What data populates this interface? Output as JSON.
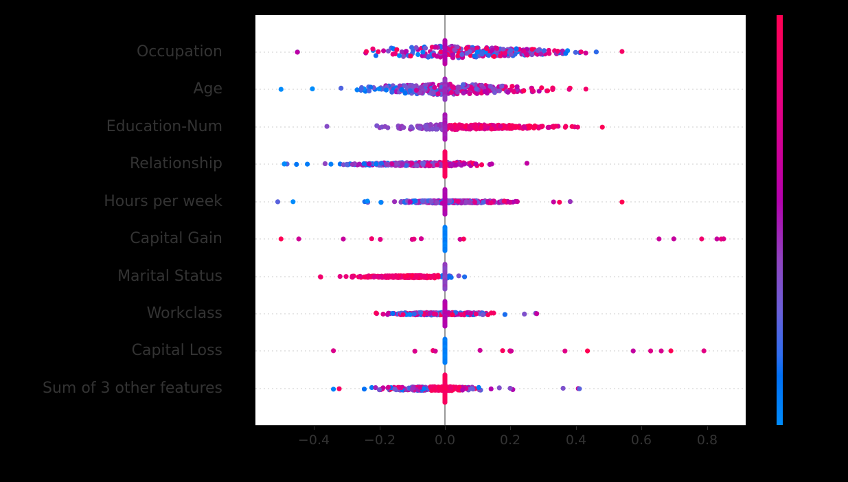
{
  "chart_data": {
    "type": "scatter",
    "subtype": "shap-beeswarm",
    "title": "",
    "xlabel": "",
    "ylabel": "",
    "xlim": [
      -0.58,
      0.92
    ],
    "x_ticks": [
      -0.4,
      -0.2,
      0.0,
      0.2,
      0.4,
      0.6,
      0.8
    ],
    "x_tick_labels": [
      "−0.4",
      "−0.2",
      "0.0",
      "0.2",
      "0.4",
      "0.6",
      "0.8"
    ],
    "grid": "horizontal dotted per feature row",
    "zero_line": true,
    "colorbar": {
      "low_color": "#008bfb",
      "high_color": "#ff0052",
      "labels": []
    },
    "features": [
      {
        "name": "Occupation",
        "min": -0.45,
        "max": 0.54,
        "dense_range": [
          -0.29,
          0.49
        ],
        "color_trend": "mixed",
        "spread": 9
      },
      {
        "name": "Age",
        "min": -0.5,
        "max": 0.43,
        "dense_range": [
          -0.37,
          0.37
        ],
        "color_trend": "blue-left-pink-right",
        "spread": 8
      },
      {
        "name": "Education-Num",
        "min": -0.36,
        "max": 0.48,
        "dense_range": [
          -0.23,
          0.44
        ],
        "color_trend": "purple-left-pink-right",
        "spread": 4
      },
      {
        "name": "Relationship",
        "min": -0.49,
        "max": 0.25,
        "dense_range": [
          -0.38,
          0.17
        ],
        "color_trend": "blue-left-pink-right",
        "spread": 3
      },
      {
        "name": "Hours per week",
        "min": -0.51,
        "max": 0.54,
        "dense_range": [
          -0.23,
          0.28
        ],
        "color_trend": "blue-left-pink-right",
        "spread": 2
      },
      {
        "name": "Capital Gain",
        "min": -0.5,
        "max": 0.85,
        "dense_range": [
          0.0,
          0.0
        ],
        "color_trend": "pink-outliers-blue-center",
        "spread": 1
      },
      {
        "name": "Marital Status",
        "min": -0.38,
        "max": 0.06,
        "dense_range": [
          -0.32,
          0.05
        ],
        "color_trend": "pink-left-blue-right",
        "spread": 2
      },
      {
        "name": "Workclass",
        "min": -0.21,
        "max": 0.28,
        "dense_range": [
          -0.21,
          0.17
        ],
        "color_trend": "mixed",
        "spread": 2
      },
      {
        "name": "Capital Loss",
        "min": -0.34,
        "max": 0.79,
        "dense_range": [
          0.0,
          0.0
        ],
        "color_trend": "pink-outliers-blue-center",
        "spread": 1
      },
      {
        "name": "Sum of 3 other features",
        "min": -0.34,
        "max": 0.41,
        "dense_range": [
          -0.25,
          0.16
        ],
        "color_trend": "mixed-pink-center",
        "spread": 3
      }
    ]
  },
  "labels": {
    "features": [
      "Occupation",
      "Age",
      "Education-Num",
      "Relationship",
      "Hours per week",
      "Capital Gain",
      "Marital Status",
      "Workclass",
      "Capital Loss",
      "Sum of 3 other features"
    ],
    "ticks": [
      "−0.4",
      "−0.2",
      "0.0",
      "0.2",
      "0.4",
      "0.6",
      "0.8"
    ]
  },
  "colors": {
    "background": "#000000",
    "plot_bg": "#ffffff",
    "text": "#333333",
    "zero_line": "#999999",
    "grid": "#cccccc",
    "blue": "#008bfb",
    "purple": "#8e44c0",
    "magenta": "#b400ad",
    "pink": "#ff0052"
  }
}
